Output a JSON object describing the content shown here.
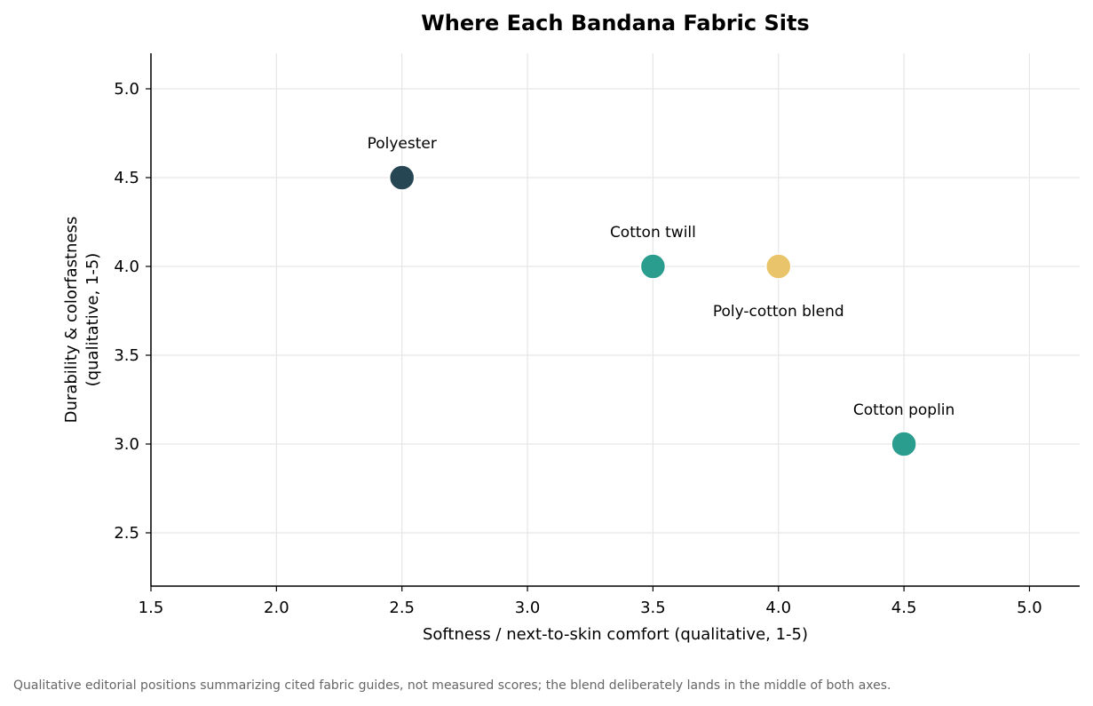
{
  "chart_data": {
    "type": "scatter",
    "title": "Where Each Bandana Fabric Sits",
    "xlabel": "Softness / next-to-skin comfort  (qualitative, 1-5)",
    "ylabel_lines": [
      "Durability & colorfastness",
      "(qualitative, 1-5)"
    ],
    "xlim": [
      1.5,
      5.2
    ],
    "ylim": [
      2.2,
      5.2
    ],
    "xticks": [
      1.5,
      2.0,
      2.5,
      3.0,
      3.5,
      4.0,
      4.5,
      5.0
    ],
    "xtick_labels": [
      "1.5",
      "2.0",
      "2.5",
      "3.0",
      "3.5",
      "4.0",
      "4.5",
      "5.0"
    ],
    "yticks": [
      2.5,
      3.0,
      3.5,
      4.0,
      4.5,
      5.0
    ],
    "ytick_labels": [
      "2.5",
      "3.0",
      "3.5",
      "4.0",
      "4.5",
      "5.0"
    ],
    "grid": true,
    "points": [
      {
        "label": "Polyester",
        "x": 2.5,
        "y": 4.5,
        "color": "#264653",
        "label_position": "above"
      },
      {
        "label": "Cotton twill",
        "x": 3.5,
        "y": 4.0,
        "color": "#2a9d8f",
        "label_position": "above"
      },
      {
        "label": "Poly-cotton blend",
        "x": 4.0,
        "y": 4.0,
        "color": "#e9c46a",
        "label_position": "below"
      },
      {
        "label": "Cotton poplin",
        "x": 4.5,
        "y": 3.0,
        "color": "#2a9d8f",
        "label_position": "above"
      }
    ]
  },
  "footnote": "Qualitative editorial positions summarizing cited fabric guides, not measured scores; the blend deliberately lands in the middle of both axes."
}
